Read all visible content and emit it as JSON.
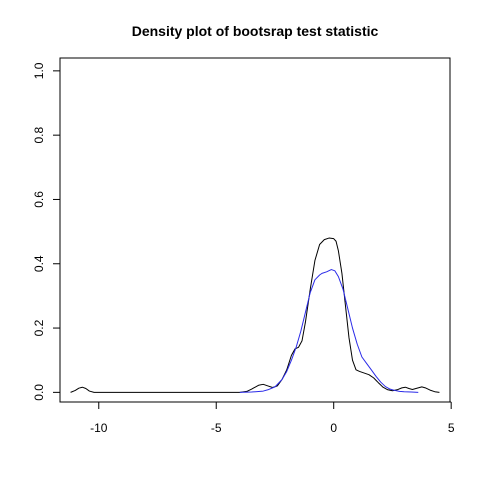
{
  "chart_data": {
    "type": "line",
    "title": "Density plot of bootsrap test statistic",
    "xlabel": "",
    "ylabel": "",
    "xlim": [
      -11.65,
      4.95
    ],
    "ylim": [
      -0.03,
      1.04
    ],
    "x_ticks": [
      {
        "value": -10,
        "label": "-10"
      },
      {
        "value": -5,
        "label": "-5"
      },
      {
        "value": 0,
        "label": "0"
      },
      {
        "value": 5,
        "label": "5"
      }
    ],
    "y_ticks": [
      {
        "value": 0.0,
        "label": "0.0"
      },
      {
        "value": 0.2,
        "label": "0.2"
      },
      {
        "value": 0.4,
        "label": "0.4"
      },
      {
        "value": 0.6,
        "label": "0.6"
      },
      {
        "value": 0.8,
        "label": "0.8"
      },
      {
        "value": 1.0,
        "label": "1.0"
      }
    ],
    "grid": false,
    "legend": "none",
    "series": [
      {
        "color": "#000000",
        "points": [
          [
            -11.2,
            0.0
          ],
          [
            -11.0,
            0.006
          ],
          [
            -10.85,
            0.013
          ],
          [
            -10.7,
            0.016
          ],
          [
            -10.55,
            0.012
          ],
          [
            -10.4,
            0.004
          ],
          [
            -10.2,
            0.0
          ],
          [
            -9.0,
            0.0
          ],
          [
            -7.0,
            0.0
          ],
          [
            -5.0,
            0.0
          ],
          [
            -4.0,
            0.0
          ],
          [
            -3.7,
            0.003
          ],
          [
            -3.5,
            0.01
          ],
          [
            -3.2,
            0.022
          ],
          [
            -3.0,
            0.025
          ],
          [
            -2.8,
            0.02
          ],
          [
            -2.6,
            0.015
          ],
          [
            -2.4,
            0.02
          ],
          [
            -2.2,
            0.04
          ],
          [
            -2.0,
            0.07
          ],
          [
            -1.8,
            0.115
          ],
          [
            -1.65,
            0.135
          ],
          [
            -1.5,
            0.14
          ],
          [
            -1.35,
            0.16
          ],
          [
            -1.2,
            0.22
          ],
          [
            -1.0,
            0.32
          ],
          [
            -0.8,
            0.41
          ],
          [
            -0.6,
            0.46
          ],
          [
            -0.4,
            0.475
          ],
          [
            -0.2,
            0.48
          ],
          [
            0.0,
            0.478
          ],
          [
            0.1,
            0.47
          ],
          [
            0.2,
            0.44
          ],
          [
            0.35,
            0.37
          ],
          [
            0.5,
            0.27
          ],
          [
            0.65,
            0.17
          ],
          [
            0.8,
            0.1
          ],
          [
            0.95,
            0.07
          ],
          [
            1.1,
            0.065
          ],
          [
            1.3,
            0.06
          ],
          [
            1.5,
            0.055
          ],
          [
            1.7,
            0.045
          ],
          [
            1.9,
            0.03
          ],
          [
            2.1,
            0.016
          ],
          [
            2.3,
            0.008
          ],
          [
            2.5,
            0.005
          ],
          [
            2.7,
            0.008
          ],
          [
            2.9,
            0.014
          ],
          [
            3.05,
            0.016
          ],
          [
            3.2,
            0.012
          ],
          [
            3.35,
            0.009
          ],
          [
            3.5,
            0.012
          ],
          [
            3.75,
            0.017
          ],
          [
            3.9,
            0.014
          ],
          [
            4.1,
            0.007
          ],
          [
            4.3,
            0.002
          ],
          [
            4.5,
            0.0
          ]
        ]
      },
      {
        "color": "#2a2ae8",
        "points": [
          [
            -4.0,
            0.0
          ],
          [
            -3.5,
            0.001
          ],
          [
            -3.0,
            0.004
          ],
          [
            -2.8,
            0.008
          ],
          [
            -2.5,
            0.017
          ],
          [
            -2.2,
            0.04
          ],
          [
            -2.0,
            0.065
          ],
          [
            -1.8,
            0.1
          ],
          [
            -1.6,
            0.14
          ],
          [
            -1.4,
            0.19
          ],
          [
            -1.2,
            0.25
          ],
          [
            -1.0,
            0.31
          ],
          [
            -0.8,
            0.35
          ],
          [
            -0.6,
            0.365
          ],
          [
            -0.5,
            0.37
          ],
          [
            -0.3,
            0.375
          ],
          [
            -0.1,
            0.382
          ],
          [
            0.05,
            0.378
          ],
          [
            0.2,
            0.36
          ],
          [
            0.4,
            0.32
          ],
          [
            0.6,
            0.26
          ],
          [
            0.8,
            0.2
          ],
          [
            1.0,
            0.15
          ],
          [
            1.2,
            0.11
          ],
          [
            1.4,
            0.09
          ],
          [
            1.6,
            0.07
          ],
          [
            1.8,
            0.05
          ],
          [
            2.0,
            0.032
          ],
          [
            2.2,
            0.018
          ],
          [
            2.4,
            0.01
          ],
          [
            2.6,
            0.006
          ],
          [
            2.8,
            0.003
          ],
          [
            3.0,
            0.002
          ],
          [
            3.3,
            0.001
          ],
          [
            3.6,
            0.0
          ]
        ]
      }
    ]
  }
}
